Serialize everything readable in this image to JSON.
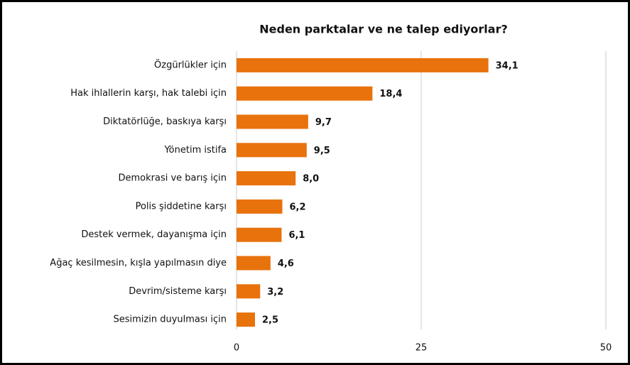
{
  "chart_data": {
    "type": "bar",
    "orientation": "horizontal",
    "title": "Neden parktalar ve ne talep ediyorlar?",
    "categories": [
      "Özgürlükler için",
      "Hak ihlallerin karşı, hak talebi için",
      "Diktatörlüğe, baskıya karşı",
      "Yönetim istifa",
      "Demokrasi ve barış için",
      "Polis şiddetine karşı",
      "Destek vermek, dayanışma için",
      "Ağaç kesilmesin, kışla yapılmasın diye",
      "Devrim/sisteme karşı",
      "Sesimizin duyulması için"
    ],
    "values": [
      34.1,
      18.4,
      9.7,
      9.5,
      8.0,
      6.2,
      6.1,
      4.6,
      3.2,
      2.5
    ],
    "value_labels": [
      "34,1",
      "18,4",
      "9,7",
      "9,5",
      "8,0",
      "6,2",
      "6,1",
      "4,6",
      "3,2",
      "2,5"
    ],
    "color": "#e8720c",
    "xlim": [
      0,
      50
    ],
    "xticks": [
      0,
      25,
      50
    ],
    "grid": true
  }
}
